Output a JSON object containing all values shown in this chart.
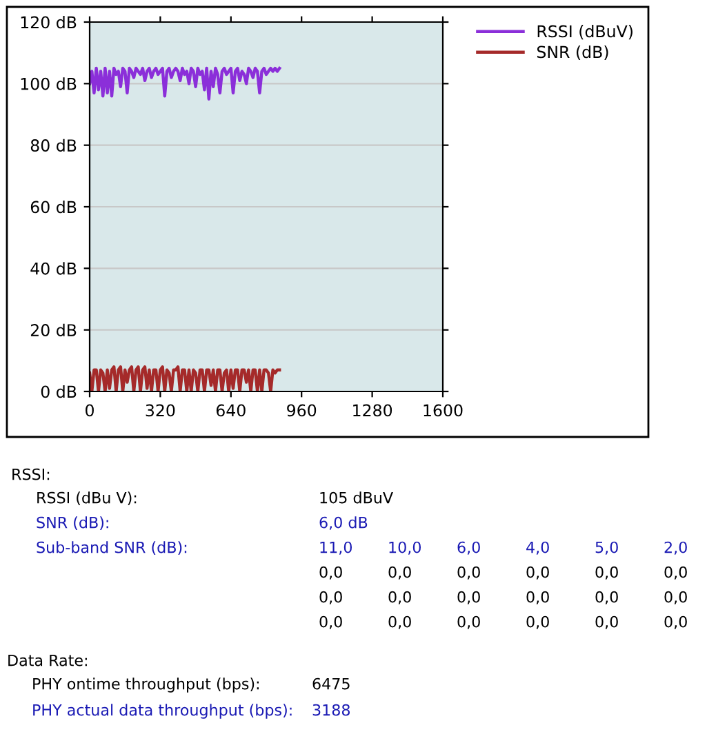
{
  "chart_data": [
    {
      "type": "line",
      "x": [
        0,
        10,
        20,
        30,
        40,
        50,
        60,
        70,
        80,
        90,
        100,
        110,
        120,
        130,
        140,
        150,
        160,
        170,
        180,
        190,
        200,
        210,
        220,
        230,
        240,
        250,
        260,
        270,
        280,
        290,
        300,
        310,
        320,
        330,
        340,
        350,
        360,
        370,
        380,
        390,
        400,
        410,
        420,
        430,
        440,
        450,
        460,
        470,
        480,
        490,
        500,
        510,
        520,
        530,
        540,
        550,
        560,
        570,
        580,
        590,
        600,
        610,
        620,
        630,
        640,
        650,
        660,
        670,
        680,
        690,
        700,
        710,
        720,
        730,
        740,
        750,
        760,
        770,
        780,
        790,
        800,
        810,
        820,
        830,
        840,
        850,
        860
      ],
      "series": [
        {
          "name": "RSSI (dBuV)",
          "color": "#8b2fd9",
          "values": [
            100,
            104,
            97,
            105,
            98,
            104,
            96,
            105,
            97,
            104,
            96,
            105,
            103,
            104,
            99,
            105,
            104,
            97,
            105,
            104,
            102,
            105,
            104,
            103,
            105,
            101,
            104,
            105,
            102,
            104,
            105,
            103,
            104,
            105,
            96,
            104,
            105,
            102,
            104,
            105,
            104,
            101,
            105,
            103,
            104,
            100,
            105,
            104,
            99,
            105,
            103,
            104,
            98,
            105,
            95,
            104,
            99,
            105,
            103,
            97,
            104,
            105,
            103,
            104,
            105,
            97,
            104,
            105,
            101,
            104,
            103,
            100,
            105,
            104,
            102,
            105,
            104,
            97,
            104,
            105,
            103,
            104,
            105,
            104,
            105,
            104,
            105
          ]
        },
        {
          "name": "SNR (dB)",
          "color": "#a52a2a",
          "values": [
            6,
            0,
            7,
            7,
            0,
            7,
            6,
            0,
            7,
            1,
            7,
            8,
            0,
            7,
            8,
            0,
            7,
            3,
            7,
            8,
            0,
            7,
            8,
            0,
            7,
            8,
            1,
            7,
            0,
            7,
            7,
            0,
            7,
            8,
            0,
            7,
            6,
            0,
            7,
            7,
            8,
            0,
            7,
            7,
            0,
            7,
            0,
            7,
            6,
            0,
            7,
            7,
            0,
            7,
            7,
            2,
            7,
            0,
            7,
            7,
            0,
            6,
            7,
            0,
            7,
            1,
            7,
            7,
            0,
            7,
            7,
            3,
            7,
            0,
            7,
            7,
            0,
            7,
            0,
            7,
            7,
            6,
            0,
            7,
            6,
            7,
            7
          ]
        }
      ],
      "xlim": [
        0,
        1600
      ],
      "xticks": [
        0,
        320,
        640,
        960,
        1280,
        1600
      ],
      "ylim": [
        0,
        120
      ],
      "yticks": [
        {
          "value": 0,
          "label": "0 dB"
        },
        {
          "value": 20,
          "label": "20 dB"
        },
        {
          "value": 40,
          "label": "40 dB"
        },
        {
          "value": 60,
          "label": "60 dB"
        },
        {
          "value": 80,
          "label": "80 dB"
        },
        {
          "value": 100,
          "label": "100 dB"
        },
        {
          "value": 120,
          "label": "120 dB"
        }
      ],
      "grid": "y",
      "legend": "right",
      "marker": "none",
      "line_style": "solid"
    },
    {
      "type": "other",
      "annotations": [
        "RSSI:",
        "RSSI (dBu V):",
        "105 dBuV",
        "SNR (dB):",
        "6,0 dB",
        "Sub-band SNR (dB):",
        "11,0",
        "10,0",
        "6,0",
        "4,0",
        "5,0",
        "2,0",
        "0,0",
        "0,0",
        "0,0",
        "0,0",
        "0,0",
        "0,0",
        "0,0",
        "0,0",
        "0,0",
        "0,0",
        "0,0",
        "0,0",
        "0,0",
        "0,0",
        "0,0",
        "0,0",
        "0,0",
        "0,0",
        "Data Rate:",
        "PHY ontime throughput (bps):",
        "6475",
        "PHY actual data throughput (bps):",
        "3188"
      ],
      "colors": [
        "#000000",
        "#000000",
        "#000000",
        "#1a1ab4",
        "#1a1ab4",
        "#1a1ab4",
        "#1a1ab4",
        "#1a1ab4",
        "#1a1ab4",
        "#1a1ab4",
        "#1a1ab4",
        "#1a1ab4",
        "#000000",
        "#000000",
        "#000000",
        "#000000",
        "#000000",
        "#000000",
        "#000000",
        "#000000",
        "#000000",
        "#000000",
        "#000000",
        "#000000",
        "#000000",
        "#000000",
        "#000000",
        "#000000",
        "#000000",
        "#000000",
        "#000000",
        "#000000",
        "#000000",
        "#1a1ab4",
        "#1a1ab4"
      ]
    }
  ]
}
